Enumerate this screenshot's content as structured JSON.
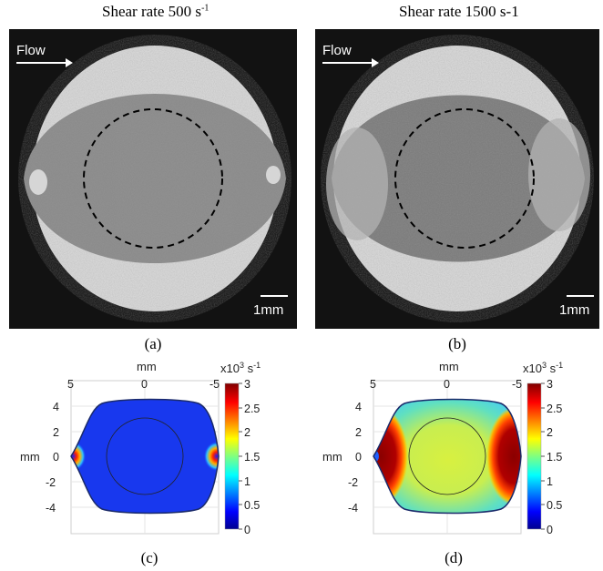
{
  "panels": {
    "a": {
      "title_main": "Shear rate 500 s",
      "title_sup": "-1",
      "flow_label": "Flow",
      "scale_label": "1mm",
      "caption": "(a)"
    },
    "b": {
      "title_main": "Shear rate 1500 s-1",
      "flow_label": "Flow",
      "scale_label": "1mm",
      "caption": "(b)"
    },
    "c": {
      "top_axis_label": "mm",
      "left_axis_label": "mm",
      "x_ticks": [
        "5",
        "0",
        "-5"
      ],
      "y_ticks": [
        "4",
        "2",
        "0",
        "-2",
        "-4"
      ],
      "colorbar_unit_main": "x10",
      "colorbar_unit_sup": "3",
      "colorbar_unit_rest": " s",
      "colorbar_unit_sup2": "-1",
      "colorbar_ticks": [
        "3",
        "2.5",
        "2",
        "1.5",
        "1",
        "0.5",
        "0"
      ],
      "caption": "(c)"
    },
    "d": {
      "top_axis_label": "mm",
      "left_axis_label": "mm",
      "x_ticks": [
        "5",
        "0",
        "-5"
      ],
      "y_ticks": [
        "4",
        "2",
        "0",
        "-2",
        "-4"
      ],
      "colorbar_unit_main": "x10",
      "colorbar_unit_sup": "3",
      "colorbar_unit_rest": " s",
      "colorbar_unit_sup2": "-1",
      "colorbar_ticks": [
        "3",
        "2.5",
        "2",
        "1.5",
        "1",
        "0.5",
        "0"
      ],
      "caption": "(d)"
    }
  },
  "colors": {
    "photo_background": "#121212",
    "ring_light": "#d9d9d9",
    "core_gray": "#8a8a8a",
    "colormap": [
      "#00008f",
      "#0000ff",
      "#00a0ff",
      "#00ffff",
      "#80ff80",
      "#ffff00",
      "#ff8000",
      "#ff0000",
      "#800000"
    ]
  }
}
